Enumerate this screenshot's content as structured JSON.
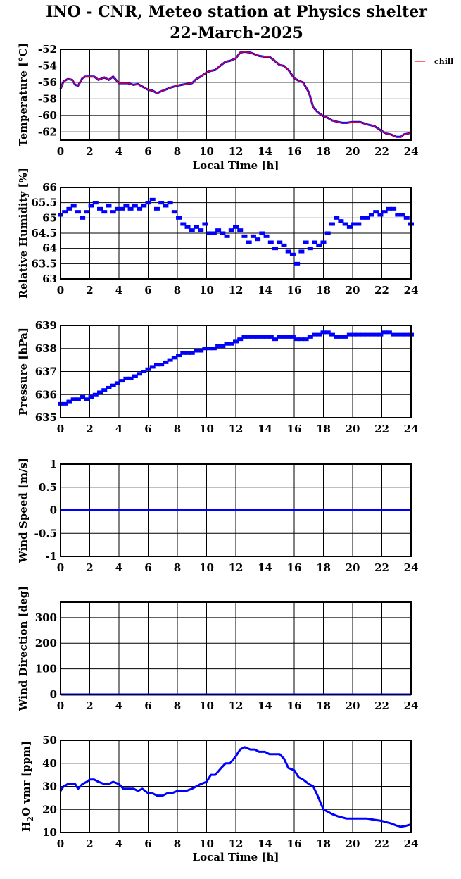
{
  "title": "INO - CNR, Meteo station at Physics shelter",
  "date": "22-March-2025",
  "chart_data": [
    {
      "type": "line",
      "ylabel": "Temperature [°C]",
      "xlabel": "Local Time [h]",
      "xlim": [
        0,
        24
      ],
      "ylim": [
        -63,
        -52
      ],
      "yticks": [
        -52,
        -54,
        -56,
        -58,
        -60,
        -62
      ],
      "xticks": [
        0,
        2,
        4,
        6,
        8,
        10,
        12,
        14,
        16,
        18,
        20,
        22,
        24
      ],
      "grid": true,
      "legend": "right",
      "series": [
        {
          "name": "",
          "color": "#0000ff",
          "x": [
            0,
            0.2,
            0.5,
            0.8,
            1.0,
            1.2,
            1.5,
            1.7,
            2.0,
            2.3,
            2.6,
            3.0,
            3.3,
            3.6,
            4.0,
            4.3,
            4.6,
            5.0,
            5.3,
            5.6,
            6.0,
            6.3,
            6.6,
            7.0,
            7.3,
            7.6,
            8.0,
            8.3,
            8.6,
            9.0,
            9.3,
            9.6,
            10.0,
            10.3,
            10.6,
            11.0,
            11.3,
            11.6,
            12.0,
            12.3,
            12.6,
            13.0,
            13.3,
            13.6,
            14.0,
            14.3,
            14.6,
            15.0,
            15.3,
            15.6,
            16.0,
            16.3,
            16.6,
            17.0,
            17.3,
            17.6,
            18.0,
            18.3,
            18.6,
            19.0,
            19.3,
            19.6,
            20.0,
            20.5,
            21.0,
            21.5,
            22.0,
            22.3,
            22.6,
            23.0,
            23.3,
            23.5,
            23.8,
            24.0
          ],
          "y": [
            -56.8,
            -55.9,
            -55.6,
            -55.7,
            -56.3,
            -56.4,
            -55.5,
            -55.3,
            -55.3,
            -55.3,
            -55.7,
            -55.4,
            -55.7,
            -55.3,
            -56.1,
            -56.1,
            -56.1,
            -56.3,
            -56.2,
            -56.5,
            -56.9,
            -57.0,
            -57.3,
            -57.0,
            -56.8,
            -56.6,
            -56.4,
            -56.3,
            -56.2,
            -56.1,
            -55.6,
            -55.3,
            -54.8,
            -54.6,
            -54.5,
            -53.9,
            -53.5,
            -53.4,
            -53.1,
            -52.4,
            -52.3,
            -52.4,
            -52.6,
            -52.8,
            -52.9,
            -52.9,
            -53.3,
            -53.9,
            -54.0,
            -54.5,
            -55.5,
            -55.8,
            -56.0,
            -57.2,
            -59.0,
            -59.6,
            -60.1,
            -60.3,
            -60.6,
            -60.8,
            -60.9,
            -60.9,
            -60.8,
            -60.8,
            -61.1,
            -61.3,
            -61.9,
            -62.2,
            -62.3,
            -62.6,
            -62.6,
            -62.3,
            -62.2,
            -62.0
          ]
        },
        {
          "name": "chill",
          "color": "#ff0000",
          "x": [
            0,
            0.2,
            0.5,
            0.8,
            1.0,
            1.2,
            1.5,
            1.7,
            2.0,
            2.3,
            2.6,
            3.0,
            3.3,
            3.6,
            4.0,
            4.3,
            4.6,
            5.0,
            5.3,
            5.6,
            6.0,
            6.3,
            6.6,
            7.0,
            7.3,
            7.6,
            8.0,
            8.3,
            8.6,
            9.0,
            9.3,
            9.6,
            10.0,
            10.3,
            10.6,
            11.0,
            11.3,
            11.6,
            12.0,
            12.3,
            12.6,
            13.0,
            13.3,
            13.6,
            14.0,
            14.3,
            14.6,
            15.0,
            15.3,
            15.6,
            16.0,
            16.3,
            16.6,
            17.0,
            17.3,
            17.6,
            18.0,
            18.3,
            18.6,
            19.0,
            19.3,
            19.6,
            20.0,
            20.5,
            21.0,
            21.5,
            22.0,
            22.3,
            22.6,
            23.0,
            23.3,
            23.5,
            23.8,
            24.0
          ],
          "y": [
            -56.8,
            -55.9,
            -55.6,
            -55.7,
            -56.3,
            -56.4,
            -55.5,
            -55.3,
            -55.3,
            -55.3,
            -55.7,
            -55.4,
            -55.7,
            -55.3,
            -56.1,
            -56.1,
            -56.1,
            -56.3,
            -56.2,
            -56.5,
            -56.9,
            -57.0,
            -57.3,
            -57.0,
            -56.8,
            -56.6,
            -56.4,
            -56.3,
            -56.2,
            -56.1,
            -55.6,
            -55.3,
            -54.8,
            -54.6,
            -54.5,
            -53.9,
            -53.5,
            -53.4,
            -53.1,
            -52.4,
            -52.3,
            -52.4,
            -52.6,
            -52.8,
            -52.9,
            -52.9,
            -53.3,
            -53.9,
            -54.0,
            -54.5,
            -55.5,
            -55.8,
            -56.0,
            -57.2,
            -59.0,
            -59.6,
            -60.1,
            -60.3,
            -60.6,
            -60.8,
            -60.9,
            -60.9,
            -60.8,
            -60.8,
            -61.1,
            -61.3,
            -61.9,
            -62.2,
            -62.3,
            -62.6,
            -62.6,
            -62.3,
            -62.2,
            -62.0
          ]
        }
      ]
    },
    {
      "type": "scatter",
      "ylabel": "Relative Humidity [%]",
      "xlabel": "",
      "xlim": [
        0,
        24
      ],
      "ylim": [
        63,
        66
      ],
      "yticks": [
        63,
        63.5,
        64,
        64.5,
        65,
        65.5,
        66
      ],
      "xticks": [
        0,
        2,
        4,
        6,
        8,
        10,
        12,
        14,
        16,
        18,
        20,
        22,
        24
      ],
      "grid": true,
      "series": [
        {
          "color": "#0000ff",
          "x": [
            0,
            0.3,
            0.6,
            0.9,
            1.2,
            1.5,
            1.8,
            2.1,
            2.4,
            2.7,
            3.0,
            3.3,
            3.6,
            3.9,
            4.2,
            4.5,
            4.8,
            5.1,
            5.4,
            5.7,
            6.0,
            6.3,
            6.6,
            6.9,
            7.2,
            7.5,
            7.8,
            8.1,
            8.4,
            8.7,
            9.0,
            9.3,
            9.6,
            9.9,
            10.2,
            10.5,
            10.8,
            11.1,
            11.4,
            11.7,
            12.0,
            12.3,
            12.6,
            12.9,
            13.2,
            13.5,
            13.8,
            14.1,
            14.4,
            14.7,
            15.0,
            15.3,
            15.6,
            15.9,
            16.2,
            16.5,
            16.8,
            17.1,
            17.4,
            17.7,
            18.0,
            18.3,
            18.6,
            18.9,
            19.2,
            19.5,
            19.8,
            20.1,
            20.4,
            20.7,
            21.0,
            21.3,
            21.6,
            21.9,
            22.2,
            22.5,
            22.8,
            23.1,
            23.4,
            23.7,
            24.0
          ],
          "y": [
            65.1,
            65.2,
            65.3,
            65.4,
            65.2,
            65.0,
            65.2,
            65.4,
            65.5,
            65.3,
            65.2,
            65.4,
            65.2,
            65.3,
            65.3,
            65.4,
            65.3,
            65.4,
            65.3,
            65.4,
            65.5,
            65.6,
            65.3,
            65.5,
            65.4,
            65.5,
            65.2,
            65.0,
            64.8,
            64.7,
            64.6,
            64.7,
            64.6,
            64.8,
            64.5,
            64.5,
            64.6,
            64.5,
            64.4,
            64.6,
            64.7,
            64.6,
            64.4,
            64.2,
            64.4,
            64.3,
            64.5,
            64.4,
            64.2,
            64.0,
            64.2,
            64.1,
            63.9,
            63.8,
            63.5,
            63.9,
            64.2,
            64.0,
            64.2,
            64.1,
            64.2,
            64.5,
            64.8,
            65.0,
            64.9,
            64.8,
            64.7,
            64.8,
            64.8,
            65.0,
            65.0,
            65.1,
            65.2,
            65.1,
            65.2,
            65.3,
            65.3,
            65.1,
            65.1,
            65.0,
            64.8
          ]
        }
      ]
    },
    {
      "type": "scatter",
      "ylabel": "Pressure [hPa]",
      "xlabel": "",
      "xlim": [
        0,
        24
      ],
      "ylim": [
        635,
        639
      ],
      "yticks": [
        635,
        636,
        637,
        638,
        639
      ],
      "xticks": [
        0,
        2,
        4,
        6,
        8,
        10,
        12,
        14,
        16,
        18,
        20,
        22,
        24
      ],
      "grid": true,
      "series": [
        {
          "color": "#0000ff",
          "x": [
            0,
            0.3,
            0.6,
            0.9,
            1.2,
            1.5,
            1.8,
            2.1,
            2.4,
            2.7,
            3.0,
            3.3,
            3.6,
            3.9,
            4.2,
            4.5,
            4.8,
            5.1,
            5.4,
            5.7,
            6.0,
            6.3,
            6.6,
            6.9,
            7.2,
            7.5,
            7.8,
            8.1,
            8.4,
            8.7,
            9.0,
            9.3,
            9.6,
            9.9,
            10.2,
            10.5,
            10.8,
            11.1,
            11.4,
            11.7,
            12.0,
            12.3,
            12.6,
            12.9,
            13.2,
            13.5,
            13.8,
            14.1,
            14.4,
            14.7,
            15.0,
            15.3,
            15.6,
            15.9,
            16.2,
            16.5,
            16.8,
            17.1,
            17.4,
            17.7,
            18.0,
            18.3,
            18.6,
            18.9,
            19.2,
            19.5,
            19.8,
            20.1,
            20.4,
            20.7,
            21.0,
            21.3,
            21.6,
            21.9,
            22.2,
            22.5,
            22.8,
            23.1,
            23.4,
            23.7,
            24.0
          ],
          "y": [
            635.6,
            635.6,
            635.7,
            635.8,
            635.8,
            635.9,
            635.8,
            635.9,
            636.0,
            636.1,
            636.2,
            636.3,
            636.4,
            636.5,
            636.6,
            636.7,
            636.7,
            636.8,
            636.9,
            637.0,
            637.1,
            637.2,
            637.3,
            637.3,
            637.4,
            637.5,
            637.6,
            637.7,
            637.8,
            637.8,
            637.8,
            637.9,
            637.9,
            638.0,
            638.0,
            638.0,
            638.1,
            638.1,
            638.2,
            638.2,
            638.3,
            638.4,
            638.5,
            638.5,
            638.5,
            638.5,
            638.5,
            638.5,
            638.5,
            638.4,
            638.5,
            638.5,
            638.5,
            638.5,
            638.4,
            638.4,
            638.4,
            638.5,
            638.6,
            638.6,
            638.7,
            638.7,
            638.6,
            638.5,
            638.5,
            638.5,
            638.6,
            638.6,
            638.6,
            638.6,
            638.6,
            638.6,
            638.6,
            638.6,
            638.7,
            638.7,
            638.6,
            638.6,
            638.6,
            638.6,
            638.6
          ]
        }
      ]
    },
    {
      "type": "line",
      "ylabel": "Wind Speed [m/s]",
      "xlabel": "",
      "xlim": [
        0,
        24
      ],
      "ylim": [
        -1,
        1
      ],
      "yticks": [
        -1,
        -0.5,
        0,
        0.5,
        1
      ],
      "xticks": [
        0,
        2,
        4,
        6,
        8,
        10,
        12,
        14,
        16,
        18,
        20,
        22,
        24
      ],
      "grid": true,
      "series": [
        {
          "color": "#0000ff",
          "x": [
            0,
            24
          ],
          "y": [
            0,
            0
          ]
        }
      ]
    },
    {
      "type": "line",
      "ylabel": "Wind Direction [deg]",
      "xlabel": "",
      "xlim": [
        0,
        24
      ],
      "ylim": [
        0,
        360
      ],
      "yticks": [
        0,
        100,
        200,
        300
      ],
      "xticks": [
        0,
        2,
        4,
        6,
        8,
        10,
        12,
        14,
        16,
        18,
        20,
        22,
        24
      ],
      "grid": true,
      "series": [
        {
          "color": "#0000ff",
          "x": [
            0,
            24
          ],
          "y": [
            0,
            0
          ]
        }
      ]
    },
    {
      "type": "line",
      "ylabel_main": "H",
      "ylabel_sub": "2",
      "ylabel_rest": "O vmr [ppm]",
      "xlabel": "Local Time [h]",
      "xlim": [
        0,
        24
      ],
      "ylim": [
        10,
        50
      ],
      "yticks": [
        10,
        20,
        30,
        40,
        50
      ],
      "xticks": [
        0,
        2,
        4,
        6,
        8,
        10,
        12,
        14,
        16,
        18,
        20,
        22,
        24
      ],
      "grid": true,
      "series": [
        {
          "color": "#0000ff",
          "x": [
            0,
            0.2,
            0.5,
            0.8,
            1.0,
            1.2,
            1.5,
            1.8,
            2.0,
            2.3,
            2.6,
            3.0,
            3.3,
            3.6,
            4.0,
            4.3,
            4.6,
            5.0,
            5.3,
            5.6,
            6.0,
            6.3,
            6.6,
            7.0,
            7.3,
            7.6,
            8.0,
            8.3,
            8.6,
            9.0,
            9.3,
            9.6,
            10.0,
            10.3,
            10.6,
            11.0,
            11.3,
            11.6,
            12.0,
            12.3,
            12.6,
            13.0,
            13.3,
            13.6,
            14.0,
            14.3,
            14.6,
            15.0,
            15.3,
            15.6,
            16.0,
            16.3,
            16.6,
            17.0,
            17.3,
            17.6,
            18.0,
            18.3,
            18.6,
            19.0,
            19.3,
            19.6,
            20.0,
            20.5,
            21.0,
            21.5,
            22.0,
            22.3,
            22.6,
            23.0,
            23.3,
            23.6,
            24.0
          ],
          "y": [
            28,
            30,
            31,
            31,
            31,
            29,
            31,
            32,
            33,
            33,
            32,
            31,
            31,
            32,
            31,
            29,
            29,
            29,
            28,
            29,
            27,
            27,
            26,
            26,
            27,
            27,
            28,
            28,
            28,
            29,
            30,
            31,
            32,
            35,
            35,
            38,
            40,
            40,
            43,
            46,
            47,
            46,
            46,
            45,
            45,
            44,
            44,
            44,
            42,
            38,
            37,
            34,
            33,
            31,
            30,
            26,
            20,
            19,
            18,
            17,
            16.5,
            16,
            16,
            16,
            16,
            15.5,
            15,
            14.5,
            14,
            13,
            12.5,
            12.8,
            13.5
          ]
        }
      ]
    }
  ]
}
